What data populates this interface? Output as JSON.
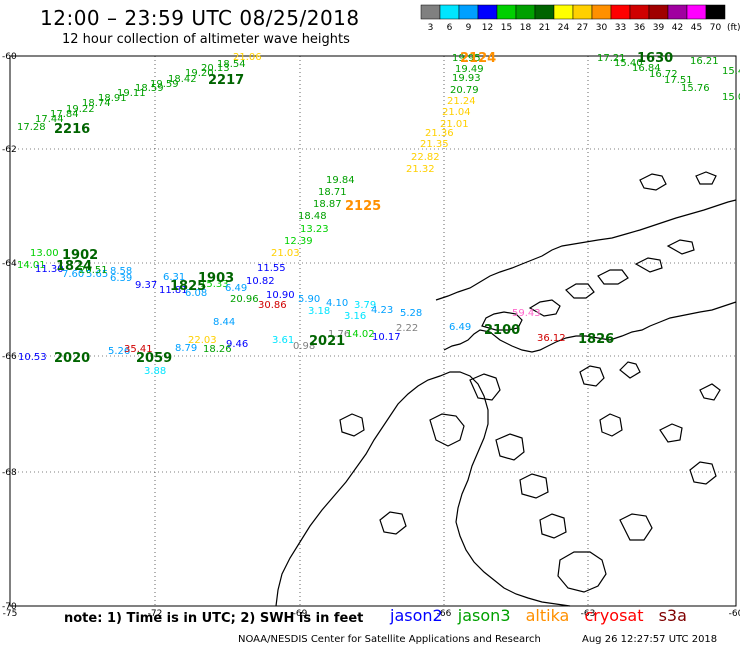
{
  "header": {
    "title": "12:00 – 23:59 UTC 08/25/2018",
    "subtitle": "12 hour collection of altimeter wave heights"
  },
  "legend": {
    "unit": "(ft)",
    "bins": [
      {
        "label": "3",
        "color": "#808080"
      },
      {
        "label": "6",
        "color": "#00e5ff"
      },
      {
        "label": "9",
        "color": "#00a0ff"
      },
      {
        "label": "12",
        "color": "#0000ff"
      },
      {
        "label": "15",
        "color": "#00d000"
      },
      {
        "label": "18",
        "color": "#00a000"
      },
      {
        "label": "21",
        "color": "#006400"
      },
      {
        "label": "24",
        "color": "#ffff00"
      },
      {
        "label": "27",
        "color": "#ffd000"
      },
      {
        "label": "30",
        "color": "#ff9000"
      },
      {
        "label": "33",
        "color": "#ff0000"
      },
      {
        "label": "36",
        "color": "#d00000"
      },
      {
        "label": "39",
        "color": "#a00000"
      },
      {
        "label": "42",
        "color": "#a000a0"
      },
      {
        "label": "45",
        "color": "#ff00ff"
      },
      {
        "label": "70",
        "color": "#000000"
      }
    ]
  },
  "axes": {
    "lat_labels": [
      "-60",
      "-62",
      "-64",
      "-66",
      "-68",
      "-70"
    ],
    "lon_labels": [
      "-75",
      "-72",
      "-69",
      "-66",
      "-63",
      "-60"
    ]
  },
  "wave_labels": [
    {
      "t": "17.28",
      "c": "#00a000"
    },
    {
      "t": "17.44",
      "c": "#00a000"
    },
    {
      "t": "17.84",
      "c": "#00a000"
    },
    {
      "t": "19.22",
      "c": "#00a000"
    },
    {
      "t": "18.74",
      "c": "#00a000"
    },
    {
      "t": "18.91",
      "c": "#00a000"
    },
    {
      "t": "19.11",
      "c": "#00a000"
    },
    {
      "t": "18.59",
      "c": "#00a000"
    },
    {
      "t": "19.59",
      "c": "#00a000"
    },
    {
      "t": "18.42",
      "c": "#00a000"
    },
    {
      "t": "19.20",
      "c": "#00a000"
    },
    {
      "t": "20.13",
      "c": "#00a000"
    },
    {
      "t": "18.54",
      "c": "#00a000"
    },
    {
      "t": "21.06",
      "c": "#ffd000"
    },
    {
      "t": "19.95",
      "c": "#00a000"
    },
    {
      "t": "19.49",
      "c": "#00a000"
    },
    {
      "t": "19.93",
      "c": "#00a000"
    },
    {
      "t": "20.79",
      "c": "#00a000"
    },
    {
      "t": "21.24",
      "c": "#ffd000"
    },
    {
      "t": "21.04",
      "c": "#ffd000"
    },
    {
      "t": "21.01",
      "c": "#ffd000"
    },
    {
      "t": "21.36",
      "c": "#ffd000"
    },
    {
      "t": "21.35",
      "c": "#ffd000"
    },
    {
      "t": "22.82",
      "c": "#ffd000"
    },
    {
      "t": "21.32",
      "c": "#ffd000"
    },
    {
      "t": "19.84",
      "c": "#00a000"
    },
    {
      "t": "18.71",
      "c": "#00a000"
    },
    {
      "t": "18.87",
      "c": "#00a000"
    },
    {
      "t": "18.48",
      "c": "#00a000"
    },
    {
      "t": "13.23",
      "c": "#00d000"
    },
    {
      "t": "12.39",
      "c": "#00d000"
    },
    {
      "t": "21.03",
      "c": "#ffd000"
    },
    {
      "t": "13.00",
      "c": "#00d000"
    },
    {
      "t": "14.01",
      "c": "#00d000"
    },
    {
      "t": "11.30",
      "c": "#0000ff"
    },
    {
      "t": "7.60",
      "c": "#00a0ff"
    },
    {
      "t": "5.65",
      "c": "#00a0ff"
    },
    {
      "t": "6.39",
      "c": "#00a0ff"
    },
    {
      "t": "20.51",
      "c": "#00a000"
    },
    {
      "t": "8.58",
      "c": "#00a0ff"
    },
    {
      "t": "9.37",
      "c": "#0000ff"
    },
    {
      "t": "6.31",
      "c": "#00a0ff"
    },
    {
      "t": "11.81",
      "c": "#0000ff"
    },
    {
      "t": "6.08",
      "c": "#00a0ff"
    },
    {
      "t": "15.33",
      "c": "#00d000"
    },
    {
      "t": "6.49",
      "c": "#00a0ff"
    },
    {
      "t": "11.55",
      "c": "#0000ff"
    },
    {
      "t": "10.82",
      "c": "#0000ff"
    },
    {
      "t": "10.90",
      "c": "#0000ff"
    },
    {
      "t": "20.96",
      "c": "#00a000"
    },
    {
      "t": "30.86",
      "c": "#d00000"
    },
    {
      "t": "5.90",
      "c": "#00a0ff"
    },
    {
      "t": "4.10",
      "c": "#00a0ff"
    },
    {
      "t": "3.18",
      "c": "#00e5ff"
    },
    {
      "t": "3.79",
      "c": "#00e5ff"
    },
    {
      "t": "4.23",
      "c": "#00a0ff"
    },
    {
      "t": "3.16",
      "c": "#00e5ff"
    },
    {
      "t": "5.28",
      "c": "#00a0ff"
    },
    {
      "t": "8.44",
      "c": "#00a0ff"
    },
    {
      "t": "2.22",
      "c": "#808080"
    },
    {
      "t": "6.49",
      "c": "#00a0ff"
    },
    {
      "t": "59.43",
      "c": "#ff66cc"
    },
    {
      "t": "36.12",
      "c": "#d00000"
    },
    {
      "t": "3.61",
      "c": "#00e5ff"
    },
    {
      "t": "0.98",
      "c": "#808080"
    },
    {
      "t": "1.76",
      "c": "#808080"
    },
    {
      "t": "14.02",
      "c": "#00d000"
    },
    {
      "t": "10.17",
      "c": "#0000ff"
    },
    {
      "t": "22.03",
      "c": "#ffd000"
    },
    {
      "t": "8.79",
      "c": "#00a0ff"
    },
    {
      "t": "9.46",
      "c": "#0000ff"
    },
    {
      "t": "18.26",
      "c": "#00a000"
    },
    {
      "t": "10.53",
      "c": "#0000ff"
    },
    {
      "t": "5.26",
      "c": "#00a0ff"
    },
    {
      "t": "35.41",
      "c": "#d00000"
    },
    {
      "t": "3.88",
      "c": "#00e5ff"
    },
    {
      "t": "17.21",
      "c": "#00a000"
    },
    {
      "t": "15.40",
      "c": "#00a000"
    },
    {
      "t": "16.84",
      "c": "#00a000"
    },
    {
      "t": "16.72",
      "c": "#00a000"
    },
    {
      "t": "17.51",
      "c": "#00a000"
    },
    {
      "t": "15.76",
      "c": "#00a000"
    },
    {
      "t": "16.21",
      "c": "#00a000"
    },
    {
      "t": "15.4",
      "c": "#00a000"
    },
    {
      "t": "15.01",
      "c": "#00a000"
    }
  ],
  "time_labels": [
    {
      "t": "2216",
      "c": "#006400"
    },
    {
      "t": "2217",
      "c": "#006400"
    },
    {
      "t": "2124",
      "c": "#ff9000"
    },
    {
      "t": "2125",
      "c": "#ff9000"
    },
    {
      "t": "1630",
      "c": "#006400"
    },
    {
      "t": "1902",
      "c": "#006400"
    },
    {
      "t": "1824",
      "c": "#006400"
    },
    {
      "t": "1903",
      "c": "#006400"
    },
    {
      "t": "1825",
      "c": "#006400"
    },
    {
      "t": "2100",
      "c": "#006400"
    },
    {
      "t": "1826",
      "c": "#006400"
    },
    {
      "t": "2021",
      "c": "#006400"
    },
    {
      "t": "2020",
      "c": "#006400"
    },
    {
      "t": "2059",
      "c": "#006400"
    }
  ],
  "footer": {
    "note": "note:  1) Time is in UTC; 2) SWH is in feet",
    "satellites": [
      {
        "name": "jason2",
        "color": "#0000ff"
      },
      {
        "name": "jason3",
        "color": "#00a000"
      },
      {
        "name": "altika",
        "color": "#ff9000"
      },
      {
        "name": "cryosat",
        "color": "#ff0000"
      },
      {
        "name": "s3a",
        "color": "#800000"
      }
    ],
    "credit": "NOAA/NESDIS Center for Satellite Applications and Research",
    "timestamp": "Aug 26 12:27:57 UTC 2018"
  }
}
